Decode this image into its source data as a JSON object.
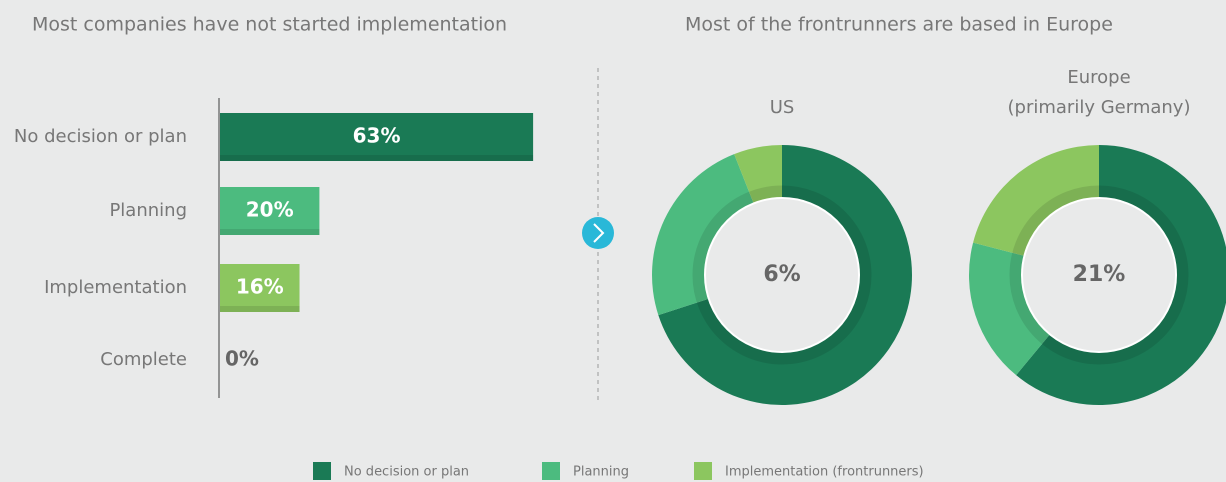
{
  "chart_data": [
    {
      "type": "hbar",
      "title": "Most companies have not started implementation",
      "categories": [
        "No decision or plan",
        "Planning",
        "Implementation",
        "Complete"
      ],
      "values": [
        63,
        20,
        16,
        0
      ],
      "value_labels": [
        "63%",
        "20%",
        "16%",
        "0%"
      ],
      "colors": [
        "#1a7a55",
        "#4cbb7f",
        "#8cc65f",
        "#8cc65f"
      ],
      "xlim": [
        0,
        100
      ]
    },
    {
      "type": "donut",
      "title": "US",
      "values": [
        70,
        24,
        6
      ],
      "value_labels": [
        null,
        null,
        "6%"
      ],
      "colors": [
        "#1a7a55",
        "#4cbb7f",
        "#8cc65f"
      ]
    },
    {
      "type": "donut",
      "title": "Europe",
      "subtitle": "(primarily Germany)",
      "values": [
        61,
        18,
        21
      ],
      "value_labels": [
        null,
        null,
        "21%"
      ],
      "colors": [
        "#1a7a55",
        "#4cbb7f",
        "#8cc65f"
      ]
    }
  ],
  "section_title": "Most of the frontrunners are based in Europe",
  "legend": [
    {
      "name": "No decision or plan",
      "color": "#1a7a55"
    },
    {
      "name": "Planning",
      "color": "#4cbb7f"
    },
    {
      "name": "Implementation (frontrunners)",
      "color": "#8cc65f"
    }
  ]
}
